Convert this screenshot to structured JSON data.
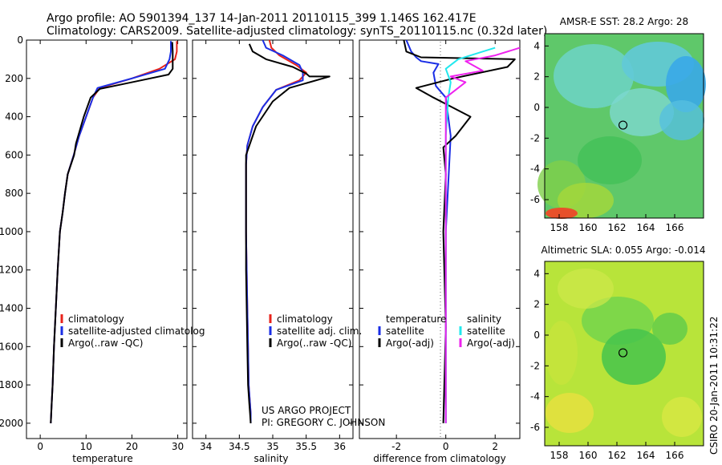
{
  "header": {
    "line1": "Argo profile: AO 5901394_137 14-Jan-2011 20110115_399 1.146S 162.417E",
    "line2": "Climatology: CARS2009. Satellite-adjusted climatology: synTS_20110115.nc (0.32d later)"
  },
  "colors": {
    "climatology": "#e8231b",
    "satellite": "#1a2ee6",
    "argo": "#000000",
    "sat_sal": "#22e8ee",
    "argo_sal": "#ee22ee"
  },
  "chart_data": [
    {
      "type": "line",
      "title": "",
      "xlabel": "temperature",
      "ylabel": "",
      "xlim": [
        -3,
        32
      ],
      "ylim": [
        2080,
        0
      ],
      "xticks": [
        "0",
        "10",
        "20",
        "30"
      ],
      "yticks": [
        "0",
        "200",
        "400",
        "600",
        "800",
        "1000",
        "1200",
        "1400",
        "1600",
        "1800",
        "2000"
      ],
      "legend": [
        "climatology",
        "satellite-adjusted climatolog",
        "Argo(..raw -QC)"
      ],
      "series": [
        {
          "name": "climatology",
          "x": [
            29.8,
            29.8,
            29.4,
            26.0,
            20.0,
            13.0,
            11.5,
            10.0,
            8.5,
            7.3,
            6.0,
            5.4,
            4.9,
            4.3,
            3.8,
            3.4,
            3.0,
            2.7,
            2.5,
            2.3
          ],
          "y": [
            5,
            60,
            100,
            150,
            200,
            250,
            300,
            400,
            500,
            600,
            700,
            800,
            900,
            1000,
            1200,
            1400,
            1600,
            1800,
            1900,
            2000
          ]
        },
        {
          "name": "satellite",
          "x": [
            28.5,
            28.5,
            28.2,
            27.2,
            20.0,
            12.5,
            11.5,
            10.0,
            8.5,
            7.3,
            6.0,
            5.4,
            4.9,
            4.3,
            3.8,
            3.4,
            3.0,
            2.7,
            2.5,
            2.3
          ],
          "y": [
            5,
            60,
            100,
            150,
            200,
            250,
            300,
            400,
            500,
            600,
            700,
            800,
            900,
            1000,
            1200,
            1400,
            1600,
            1800,
            1900,
            2000
          ]
        },
        {
          "name": "argo",
          "x": [
            28.8,
            28.9,
            28.9,
            28.0,
            22.0,
            13.0,
            11.0,
            9.5,
            7.8,
            7.4,
            6.0,
            5.4,
            4.9,
            4.3,
            3.8,
            3.4,
            3.0,
            2.7,
            2.5,
            2.3
          ],
          "y": [
            10,
            60,
            150,
            180,
            210,
            255,
            300,
            400,
            540,
            600,
            700,
            800,
            900,
            1000,
            1200,
            1400,
            1600,
            1800,
            1900,
            2000
          ]
        }
      ]
    },
    {
      "type": "line",
      "title": "",
      "xlabel": "salinity",
      "ylabel": "",
      "xlim": [
        33.8,
        36.2
      ],
      "ylim": [
        2080,
        0
      ],
      "xticks": [
        "34",
        "34.5",
        "35",
        "35.5",
        "36"
      ],
      "legend": [
        "climatology",
        "satellite adj. clim.",
        "Argo(..raw -QC)"
      ],
      "annotations": [
        "US ARGO PROJECT",
        "PI: GREGORY C. JOHNSON"
      ],
      "series": [
        {
          "name": "climatology",
          "x": [
            34.95,
            34.98,
            35.1,
            35.35,
            35.5,
            35.4,
            35.05,
            34.85,
            34.7,
            34.62,
            34.6,
            34.6,
            34.6,
            34.61,
            34.62,
            34.63,
            34.64,
            34.66,
            34.67,
            34.67
          ],
          "y": [
            0,
            40,
            80,
            130,
            170,
            210,
            260,
            350,
            450,
            550,
            650,
            800,
            1000,
            1200,
            1400,
            1600,
            1800,
            1900,
            1950,
            2000
          ]
        },
        {
          "name": "satellite",
          "x": [
            34.85,
            34.9,
            35.15,
            35.4,
            35.45,
            35.45,
            35.05,
            34.85,
            34.7,
            34.62,
            34.6,
            34.6,
            34.6,
            34.61,
            34.62,
            34.63,
            34.64,
            34.66,
            34.67,
            34.67
          ],
          "y": [
            0,
            40,
            80,
            130,
            170,
            210,
            260,
            350,
            450,
            550,
            650,
            800,
            1000,
            1200,
            1400,
            1600,
            1800,
            1900,
            1950,
            2000
          ]
        },
        {
          "name": "argo",
          "x": [
            34.65,
            34.7,
            34.9,
            35.3,
            35.5,
            35.55,
            35.85,
            35.25,
            35.0,
            34.75,
            34.6,
            34.6,
            34.6,
            34.6,
            34.61,
            34.62,
            34.63,
            34.65,
            34.66,
            34.67
          ],
          "y": [
            20,
            60,
            100,
            140,
            175,
            190,
            190,
            250,
            320,
            450,
            600,
            800,
            1000,
            1200,
            1400,
            1600,
            1800,
            1900,
            1950,
            2000
          ]
        }
      ]
    },
    {
      "type": "line",
      "title": "",
      "xlabel": "difference from climatology",
      "ylabel": "",
      "xlim": [
        -3.5,
        3.0
      ],
      "ylim": [
        2080,
        0
      ],
      "xticks": [
        "-2",
        "0",
        "2"
      ],
      "legend_left": [
        "temperature",
        "satellite",
        "Argo(-adj)"
      ],
      "legend_right": [
        "salinity",
        "satellite",
        "Argo(-adj)"
      ],
      "series": [
        {
          "name": "temperature satellite",
          "x": [
            -1.6,
            -1.4,
            -1.2,
            -1.0,
            -0.3,
            -0.5,
            -0.4,
            0.0,
            0.2,
            0.0,
            0.0
          ],
          "y": [
            0,
            60,
            90,
            110,
            125,
            170,
            240,
            300,
            500,
            1000,
            2000
          ]
        },
        {
          "name": "temperature Argo(-adj)",
          "x": [
            -1.7,
            -1.6,
            -1.0,
            2.8,
            2.5,
            0.3,
            -1.2,
            -0.5,
            1.0,
            0.4,
            -0.1,
            0.0,
            -0.1,
            0.0,
            -0.1
          ],
          "y": [
            0,
            60,
            90,
            100,
            140,
            200,
            250,
            300,
            400,
            500,
            560,
            700,
            1000,
            1500,
            2000
          ]
        },
        {
          "name": "salinity satellite",
          "x": [
            2.0,
            1.5,
            0.5,
            0.0,
            0.2,
            0.1,
            0.0,
            0.0,
            0.0
          ],
          "y": [
            40,
            60,
            100,
            150,
            220,
            300,
            500,
            1000,
            2000
          ]
        },
        {
          "name": "salinity Argo(-adj)",
          "x": [
            3.0,
            2.0,
            0.8,
            1.5,
            0.2,
            0.8,
            0.0,
            0.0,
            0.0
          ],
          "y": [
            40,
            80,
            110,
            160,
            190,
            220,
            300,
            1000,
            2000
          ]
        }
      ]
    },
    {
      "type": "heatmap",
      "title": "AMSR-E SST: 28.2 Argo: 28",
      "xlim": [
        157,
        168
      ],
      "ylim": [
        -7.2,
        4.8
      ],
      "xticks": [
        "158",
        "160",
        "162",
        "164",
        "166"
      ],
      "yticks": [
        "4",
        "2",
        "0",
        "-2",
        "-4",
        "-6"
      ],
      "marker": {
        "lon": 162.42,
        "lat": -1.15
      }
    },
    {
      "type": "heatmap",
      "title": "Altimetric SLA: 0.055 Argo: -0.014",
      "xlim": [
        157,
        168
      ],
      "ylim": [
        -7.2,
        4.8
      ],
      "xticks": [
        "158",
        "160",
        "162",
        "164",
        "166"
      ],
      "yticks": [
        "4",
        "2",
        "0",
        "-2",
        "-4",
        "-6"
      ],
      "marker": {
        "lon": 162.42,
        "lat": -1.15
      }
    }
  ],
  "footer": {
    "credit": "CSIRO 20-Jan-2011 10:31:22"
  }
}
